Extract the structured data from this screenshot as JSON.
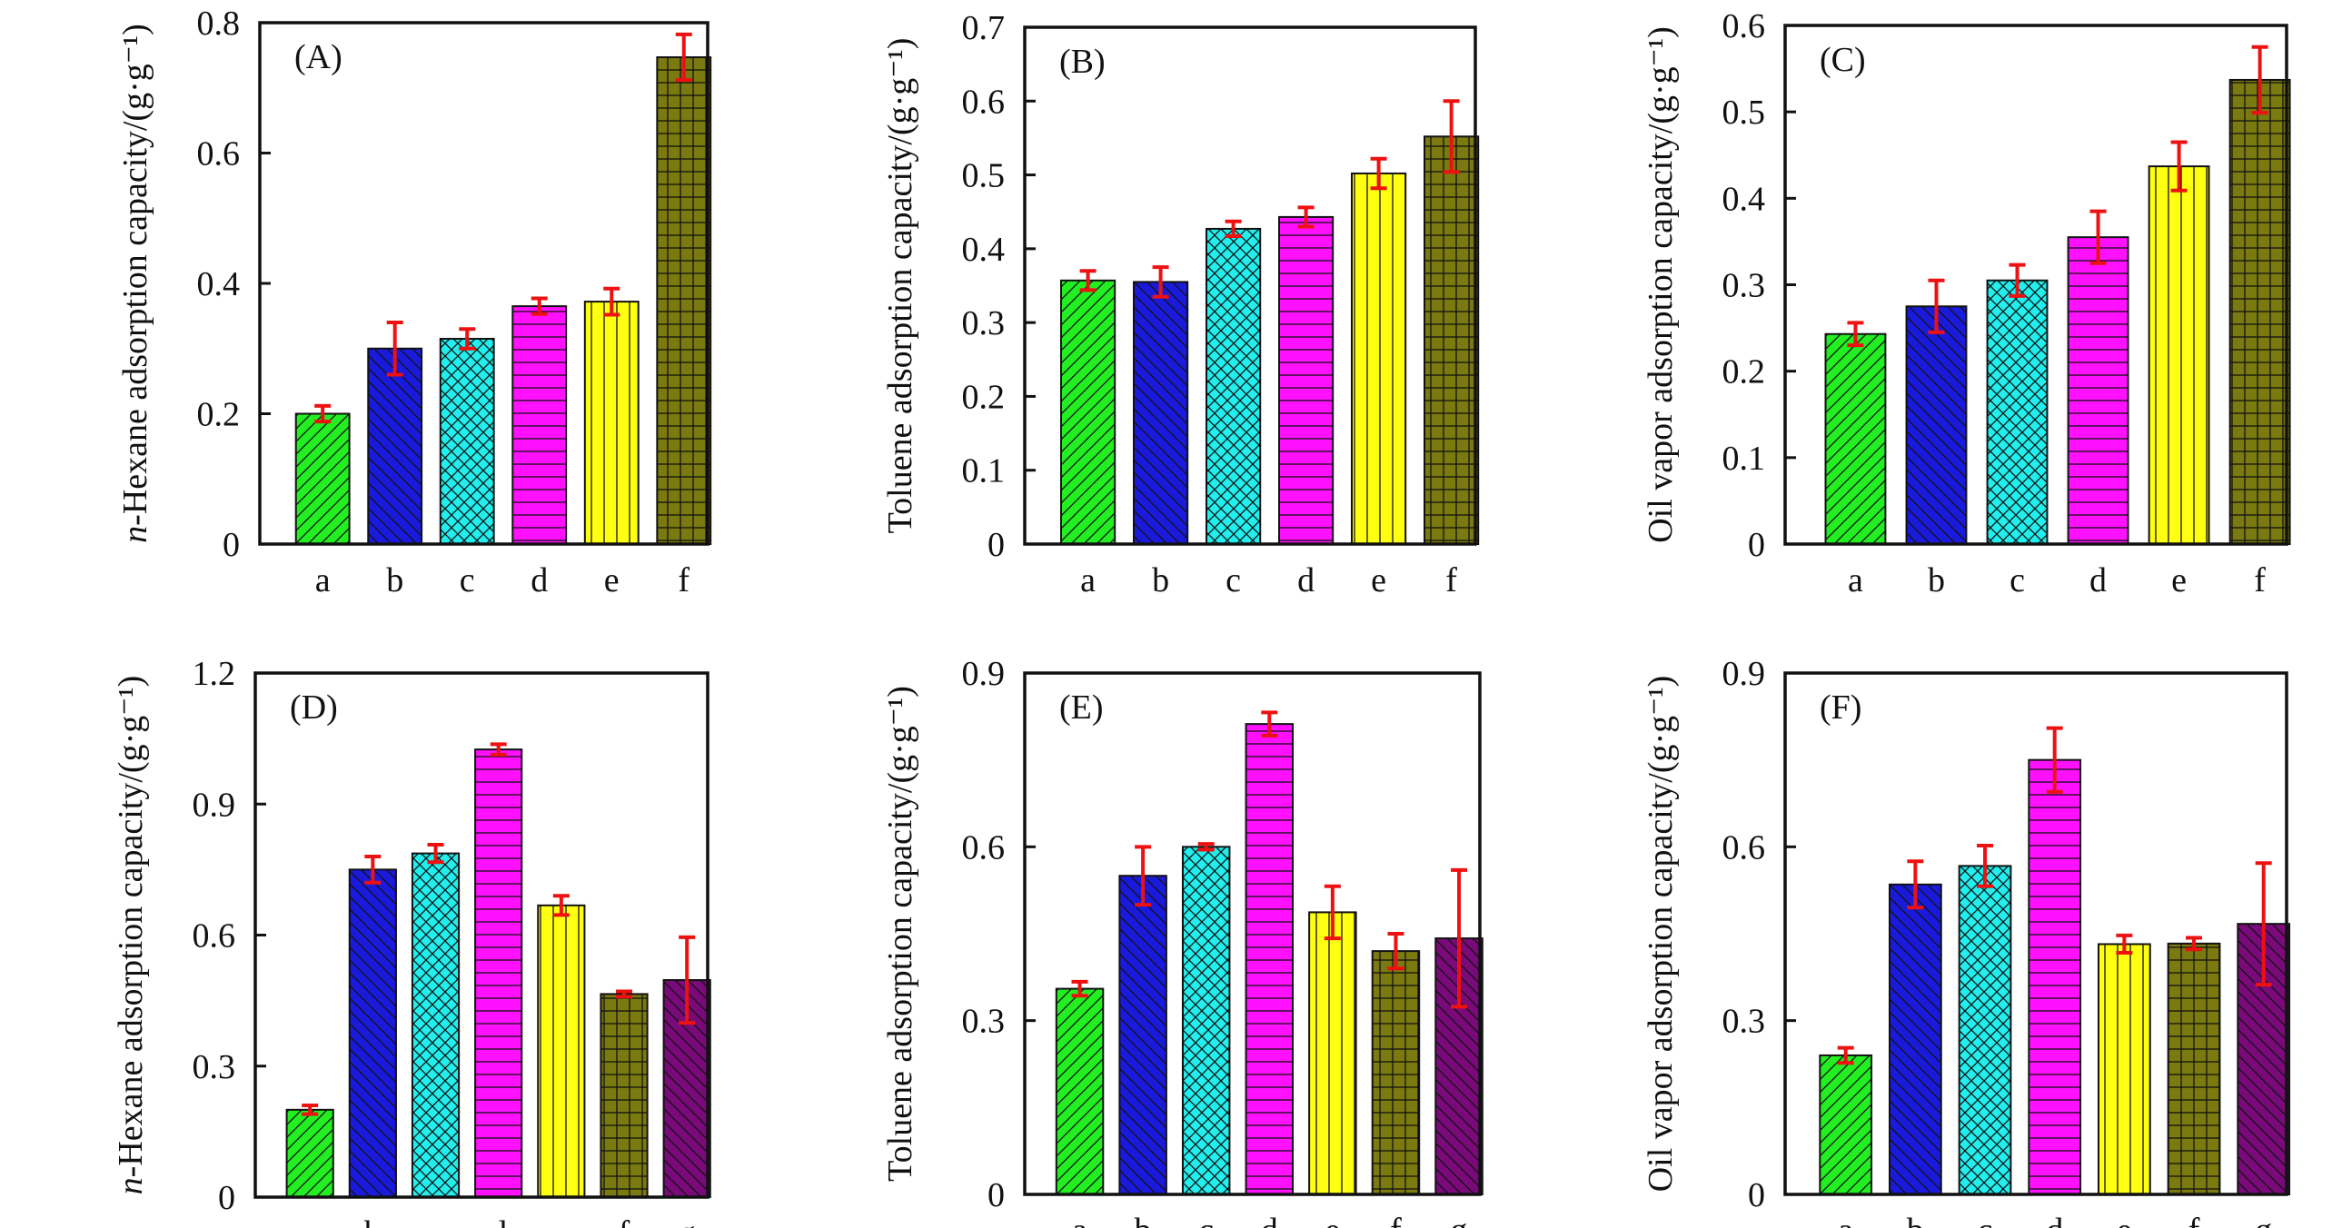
{
  "chart_data": [
    {
      "type": "bar",
      "panel_label": "(A)",
      "ylabel": "n-Hexane adsorption capacity/(g·g⁻¹)",
      "ylabel_italic_prefix": "n",
      "ylim": [
        0,
        0.8
      ],
      "yticks": [
        "0",
        "0.2",
        "0.4",
        "0.6",
        "0.8"
      ],
      "categories": [
        "a",
        "b",
        "c",
        "d",
        "e",
        "f"
      ],
      "values": [
        0.2,
        0.3,
        0.315,
        0.365,
        0.372,
        0.747
      ],
      "errors": [
        0.012,
        0.04,
        0.015,
        0.012,
        0.02,
        0.035
      ],
      "grid": false
    },
    {
      "type": "bar",
      "panel_label": "(B)",
      "ylabel": "Toluene adsorption capacity/(g·g⁻¹)",
      "ylim": [
        0,
        0.7
      ],
      "yticks": [
        "0",
        "0.1",
        "0.2",
        "0.3",
        "0.4",
        "0.5",
        "0.6",
        "0.7"
      ],
      "categories": [
        "a",
        "b",
        "c",
        "d",
        "e",
        "f"
      ],
      "values": [
        0.357,
        0.355,
        0.427,
        0.443,
        0.502,
        0.552
      ],
      "errors": [
        0.013,
        0.02,
        0.01,
        0.013,
        0.02,
        0.048
      ],
      "grid": false
    },
    {
      "type": "bar",
      "panel_label": "(C)",
      "ylabel": "Oil vapor adsorption capacity/(g·g⁻¹)",
      "ylim": [
        0,
        0.6
      ],
      "yticks": [
        "0",
        "0.1",
        "0.2",
        "0.3",
        "0.4",
        "0.5",
        "0.6"
      ],
      "categories": [
        "a",
        "b",
        "c",
        "d",
        "e",
        "f"
      ],
      "values": [
        0.243,
        0.275,
        0.305,
        0.355,
        0.437,
        0.537
      ],
      "errors": [
        0.013,
        0.03,
        0.018,
        0.03,
        0.028,
        0.038
      ],
      "grid": false
    },
    {
      "type": "bar",
      "panel_label": "(D)",
      "ylabel": "n-Hexane adsorption capacity/(g·g⁻¹)",
      "ylabel_italic_prefix": "n",
      "ylim": [
        0,
        1.2
      ],
      "yticks": [
        "0",
        "0.3",
        "0.6",
        "0.9",
        "1.2"
      ],
      "categories": [
        "a",
        "b",
        "c",
        "d",
        "e",
        "f",
        "g"
      ],
      "values": [
        0.2,
        0.75,
        0.787,
        1.025,
        0.668,
        0.465,
        0.497
      ],
      "errors": [
        0.01,
        0.03,
        0.02,
        0.012,
        0.022,
        0.006,
        0.098
      ],
      "grid": false
    },
    {
      "type": "bar",
      "panel_label": "(E)",
      "ylabel": "Toluene adsorption capacity/(g·g⁻¹)",
      "ylim": [
        0,
        0.9
      ],
      "yticks": [
        "0",
        "0.3",
        "0.6",
        "0.9"
      ],
      "categories": [
        "a",
        "b",
        "c",
        "d",
        "e",
        "f",
        "g"
      ],
      "values": [
        0.355,
        0.55,
        0.6,
        0.812,
        0.487,
        0.42,
        0.442
      ],
      "errors": [
        0.012,
        0.05,
        0.005,
        0.02,
        0.045,
        0.03,
        0.118
      ],
      "grid": false
    },
    {
      "type": "bar",
      "panel_label": "(F)",
      "ylabel": "Oil vapor adsorption capacity/(g·g⁻¹)",
      "ylim": [
        0,
        0.9
      ],
      "yticks": [
        "0",
        "0.3",
        "0.6",
        "0.9"
      ],
      "categories": [
        "a",
        "b",
        "c",
        "d",
        "e",
        "f",
        "g"
      ],
      "values": [
        0.24,
        0.535,
        0.567,
        0.75,
        0.432,
        0.433,
        0.467
      ],
      "errors": [
        0.013,
        0.04,
        0.035,
        0.055,
        0.015,
        0.01,
        0.105
      ],
      "grid": false
    }
  ],
  "bar_styles": [
    {
      "category": "a",
      "color": "#22ee22",
      "pattern": "diagonal-up"
    },
    {
      "category": "b",
      "color": "#1a1adc",
      "pattern": "diagonal-down"
    },
    {
      "category": "c",
      "color": "#22eeee",
      "pattern": "crosshatch"
    },
    {
      "category": "d",
      "color": "#ff11ff",
      "pattern": "horizontal"
    },
    {
      "category": "e",
      "color": "#ffff11",
      "pattern": "vertical"
    },
    {
      "category": "f",
      "color": "#7a7a10",
      "pattern": "grid"
    },
    {
      "category": "g",
      "color": "#7a0a7a",
      "pattern": "diagonal-down"
    }
  ],
  "error_bar_color": "#ee1111"
}
